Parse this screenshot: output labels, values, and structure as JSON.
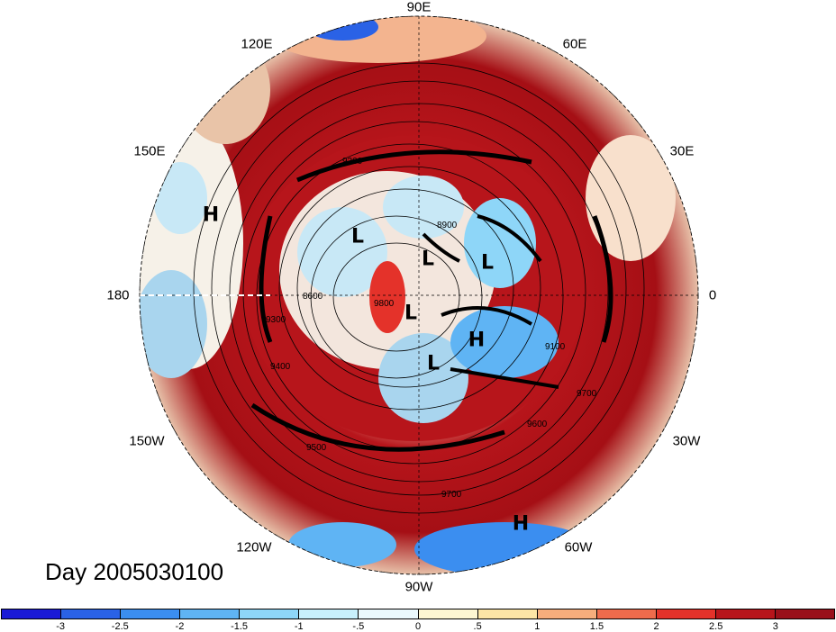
{
  "title": "Day 2005030100",
  "map": {
    "projection": "polar-stereographic",
    "hemisphere": "northern",
    "longitude_labels": [
      "90E",
      "60E",
      "30E",
      "0",
      "30W",
      "60W",
      "90W",
      "120W",
      "150W",
      "180",
      "150E",
      "120E"
    ],
    "contour_labels": [
      "8900",
      "9100",
      "9200",
      "9300",
      "9400",
      "9500",
      "9600",
      "9700",
      "9800",
      "8600"
    ],
    "pressure_centers": [
      {
        "label": "H",
        "lon_lat": [
          172,
          45
        ]
      },
      {
        "label": "L",
        "lon_lat": [
          128,
          70
        ]
      },
      {
        "label": "L",
        "lon_lat": [
          82,
          78
        ]
      },
      {
        "label": "L",
        "lon_lat": [
          35,
          70
        ]
      },
      {
        "label": "L",
        "lon_lat": [
          -100,
          85
        ]
      },
      {
        "label": "H",
        "lon_lat": [
          -20,
          75
        ]
      },
      {
        "label": "L",
        "lon_lat": [
          -75,
          75
        ]
      },
      {
        "label": "H",
        "lon_lat": [
          -55,
          20
        ]
      }
    ],
    "colors": {
      "ocean_land_warm": "#a50f15",
      "cold": "#2c7bb6"
    }
  },
  "colorbar": {
    "ticks": [
      "-3",
      "-2.5",
      "-2",
      "-1.5",
      "-1",
      "-.5",
      "0",
      ".5",
      "1",
      "1.5",
      "2",
      "2.5",
      "3"
    ],
    "colors": [
      "#1a1ad6",
      "#2a62e6",
      "#3b8ef0",
      "#5fb4f4",
      "#8ed6f8",
      "#c8f0fc",
      "#eaf9fd",
      "#fdf6d2",
      "#fce5a6",
      "#f6ad7c",
      "#ef6b4c",
      "#e4322a",
      "#b7151b",
      "#99101a"
    ]
  }
}
